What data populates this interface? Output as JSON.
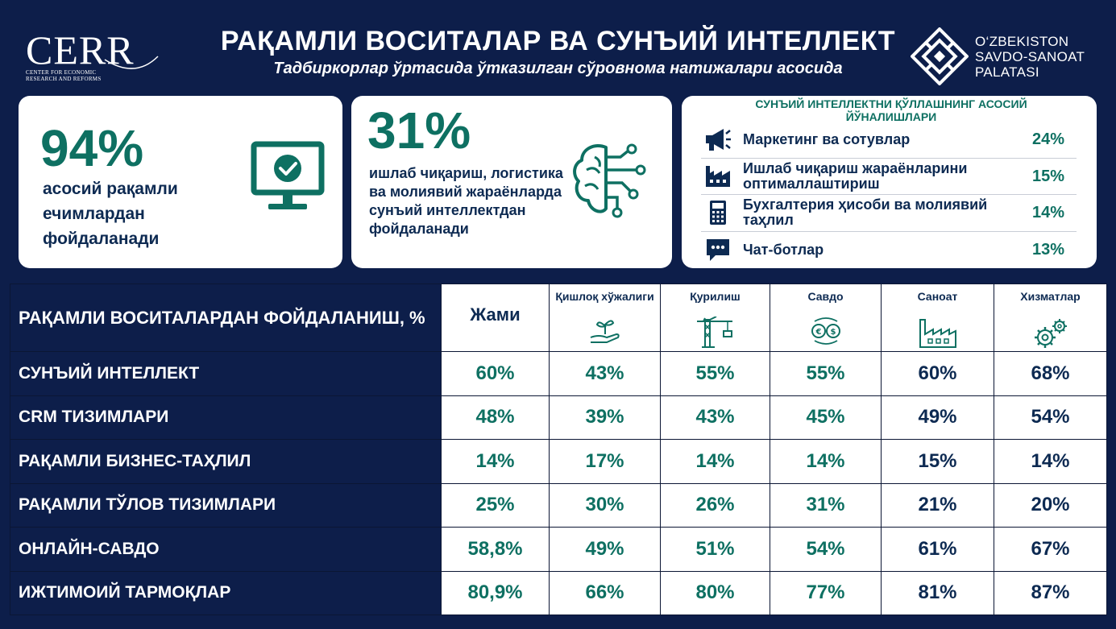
{
  "header": {
    "title": "РАҚАМЛИ ВОСИТАЛАР ВА СУНЪИЙ ИНТЕЛЛЕКТ",
    "subtitle": "Тадбиркорлар ўртасида ўтказилган сўровнома натижалари асосида",
    "logo_left": {
      "name": "CERR",
      "line1": "CENTER FOR ECONOMIC",
      "line2": "RESEARCH AND REFORMS"
    },
    "logo_right": {
      "line1": "O‘ZBEKISTON",
      "line2": "SAVDO-SANOAT",
      "line3": "PALATASI"
    }
  },
  "cards": [
    {
      "percent": "94%",
      "text": "асосий рақамли ечимлардан фойдаланади",
      "icon": "monitor-check-icon"
    },
    {
      "percent": "31%",
      "text": "ишлаб чиқариш, логистика ва молиявий жараёнларда сунъий интеллектдан фойдаланади",
      "icon": "ai-brain-icon"
    }
  ],
  "ai_directions": {
    "title": "СУНЪИЙ ИНТЕЛЛЕКТНИ ҚЎЛЛАШНИНГ АСОСИЙ ЙЎНАЛИШЛАРИ",
    "items": [
      {
        "label": "Маркетинг ва сотувлар",
        "value": "24%",
        "icon": "megaphone-icon"
      },
      {
        "label": "Ишлаб чиқариш жараёнларини оптималлаштириш",
        "value": "15%",
        "icon": "factory-icon"
      },
      {
        "label": "Бухгалтерия ҳисоби ва молиявий таҳлил",
        "value": "14%",
        "icon": "calculator-icon"
      },
      {
        "label": "Чат-ботлар",
        "value": "13%",
        "icon": "chat-icon"
      }
    ]
  },
  "table": {
    "title": "РАҚАМЛИ ВОСИТАЛАРДАН ФОЙДАЛАНИШ, %",
    "columns": [
      {
        "label": "Жами",
        "icon": ""
      },
      {
        "label": "Қишлоқ хўжалиги",
        "icon": "sprout-hand-icon"
      },
      {
        "label": "Қурилиш",
        "icon": "crane-icon"
      },
      {
        "label": "Савдо",
        "icon": "currency-exchange-icon"
      },
      {
        "label": "Саноат",
        "icon": "factory-icon"
      },
      {
        "label": "Хизматлар",
        "icon": "gears-icon"
      }
    ],
    "rows": [
      {
        "label": "СУНЪИЙ ИНТЕЛЛЕКТ",
        "values": [
          "60%",
          "43%",
          "55%",
          "55%",
          "60%",
          "68%"
        ]
      },
      {
        "label": "CRM ТИЗИМЛАРИ",
        "values": [
          "48%",
          "39%",
          "43%",
          "45%",
          "49%",
          "54%"
        ]
      },
      {
        "label": "РАҚАМЛИ БИЗНЕС-ТАҲЛИЛ",
        "values": [
          "14%",
          "17%",
          "14%",
          "14%",
          "15%",
          "14%"
        ]
      },
      {
        "label": "РАҚАМЛИ ТЎЛОВ ТИЗИМЛАРИ",
        "values": [
          "25%",
          "30%",
          "26%",
          "31%",
          "21%",
          "20%"
        ]
      },
      {
        "label": "ОНЛАЙН-САВДО",
        "values": [
          "58,8%",
          "49%",
          "51%",
          "54%",
          "61%",
          "67%"
        ]
      },
      {
        "label": "ИЖТИМОИЙ ТАРМОҚЛАР",
        "values": [
          "80,9%",
          "66%",
          "80%",
          "77%",
          "81%",
          "87%"
        ]
      }
    ]
  },
  "colors": {
    "background": "#0d1e4a",
    "accent_green": "#0e7062",
    "navy_text": "#0d2a52"
  }
}
